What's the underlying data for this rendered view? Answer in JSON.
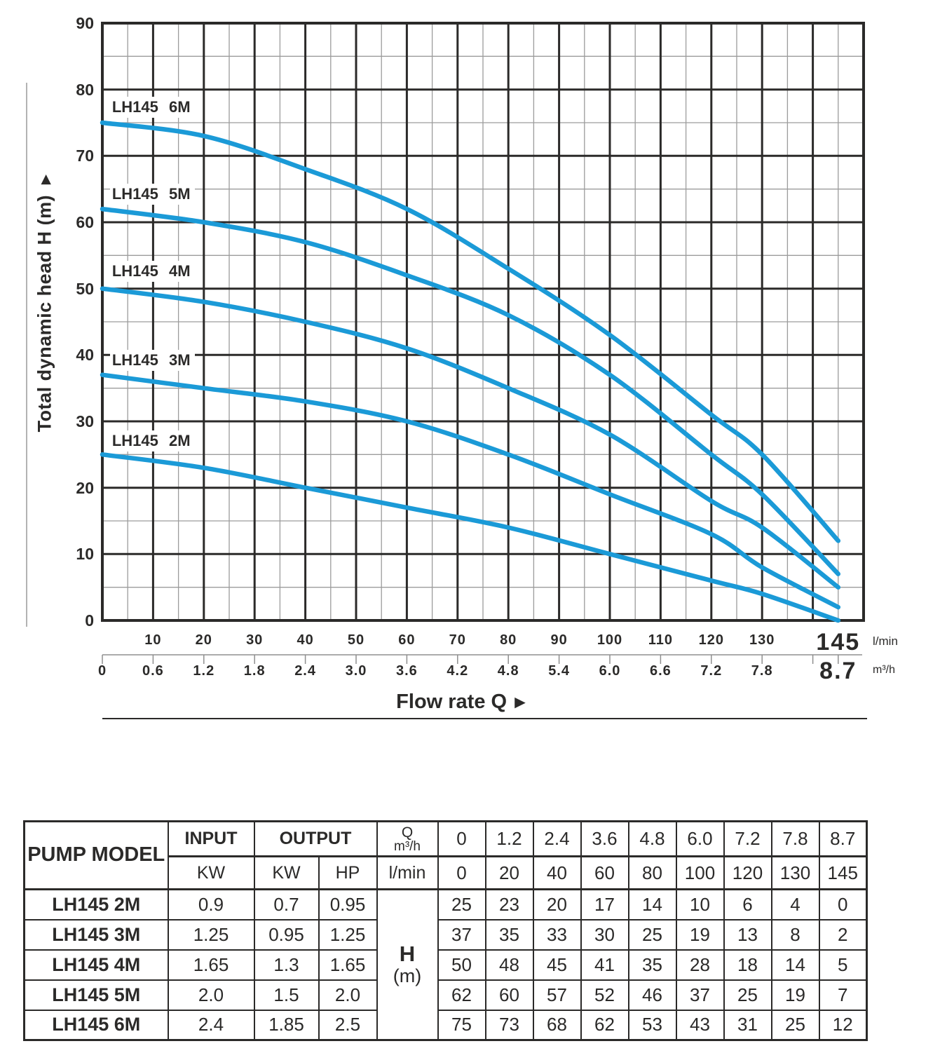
{
  "chart_data": {
    "type": "line",
    "title": "",
    "xlabel": "Flow rate Q",
    "ylabel": "Total dynamic head H (m)",
    "x_unit_primary": "l/min",
    "x_unit_secondary": "m³/h",
    "x_lmin": [
      0,
      20,
      40,
      60,
      80,
      100,
      120,
      130,
      145
    ],
    "x_m3h": [
      0,
      1.2,
      2.4,
      3.6,
      4.8,
      6.0,
      7.2,
      7.8,
      8.7
    ],
    "series": [
      {
        "name": "LH145 2M",
        "values": [
          25,
          23,
          20,
          17,
          14,
          10,
          6,
          4,
          0
        ],
        "label_pos": {
          "x": 1.5,
          "y": 27.0
        }
      },
      {
        "name": "LH145 3M",
        "values": [
          37,
          35,
          33,
          30,
          25,
          19,
          13,
          8,
          2
        ],
        "label_pos": {
          "x": 1.5,
          "y": 39.2
        }
      },
      {
        "name": "LH145 4M",
        "values": [
          50,
          48,
          45,
          41,
          35,
          28,
          18,
          14,
          5
        ],
        "label_pos": {
          "x": 1.5,
          "y": 52.6
        }
      },
      {
        "name": "LH145 5M",
        "values": [
          62,
          60,
          57,
          52,
          46,
          37,
          25,
          19,
          7
        ],
        "label_pos": {
          "x": 1.5,
          "y": 64.2
        }
      },
      {
        "name": "LH145 6M",
        "values": [
          75,
          73,
          68,
          62,
          53,
          43,
          31,
          25,
          12
        ],
        "label_pos": {
          "x": 1.5,
          "y": 77.3
        }
      }
    ],
    "ylim": [
      0,
      90
    ],
    "xlim_lmin": [
      0,
      150
    ],
    "y_ticks": [
      90,
      80,
      70,
      60,
      50,
      40,
      30,
      20,
      10,
      0
    ],
    "x_ticks_lmin": [
      10,
      20,
      30,
      40,
      50,
      60,
      70,
      80,
      90,
      100,
      110,
      120,
      130
    ],
    "x_ticks_m3h_labels": [
      "0",
      "0.6",
      "1.2",
      "1.8",
      "2.4",
      "3.0",
      "3.6",
      "4.2",
      "4.8",
      "5.4",
      "6.0",
      "6.6",
      "7.2",
      "7.8"
    ],
    "x_end": {
      "lmin": "145",
      "m3h": "8.7",
      "pos_lmin": 145
    },
    "ruler_ticks": [
      0,
      10,
      20,
      30,
      40,
      50,
      60,
      70,
      80,
      90,
      100,
      110,
      120,
      130,
      140,
      145
    ],
    "grid": {
      "major_step": 10,
      "minor_step": 5,
      "style": "major+minor"
    }
  },
  "colors": {
    "curve": "#1b9ad7",
    "grid_major": "#2b2a29",
    "grid_minor": "#9c9c9c",
    "ruler": "#8f8f8f",
    "text": "#2b2a29",
    "guide_line": "#b3b3b3"
  },
  "icons": {
    "axis_arrow": "►"
  },
  "table": {
    "col1_header": "PUMP MODEL",
    "input_header": "INPUT",
    "output_header": "OUTPUT",
    "q_label": "Q",
    "q_unit": "m³/h",
    "input_kw_header": "KW",
    "output_kw_header": "KW",
    "output_hp_header": "HP",
    "lmin_label": "l/min",
    "h_label": "H",
    "h_unit": "(m)",
    "q_m3h": [
      "0",
      "1.2",
      "2.4",
      "3.6",
      "4.8",
      "6.0",
      "7.2",
      "7.8",
      "8.7"
    ],
    "q_lmin": [
      "0",
      "20",
      "40",
      "60",
      "80",
      "100",
      "120",
      "130",
      "145"
    ],
    "rows": [
      {
        "model": "LH145 2M",
        "input_kw": "0.9",
        "output_kw": "0.7",
        "output_hp": "0.95",
        "head_m": [
          "25",
          "23",
          "20",
          "17",
          "14",
          "10",
          "6",
          "4",
          "0"
        ]
      },
      {
        "model": "LH145 3M",
        "input_kw": "1.25",
        "output_kw": "0.95",
        "output_hp": "1.25",
        "head_m": [
          "37",
          "35",
          "33",
          "30",
          "25",
          "19",
          "13",
          "8",
          "2"
        ]
      },
      {
        "model": "LH145 4M",
        "input_kw": "1.65",
        "output_kw": "1.3",
        "output_hp": "1.65",
        "head_m": [
          "50",
          "48",
          "45",
          "41",
          "35",
          "28",
          "18",
          "14",
          "5"
        ]
      },
      {
        "model": "LH145 5M",
        "input_kw": "2.0",
        "output_kw": "1.5",
        "output_hp": "2.0",
        "head_m": [
          "62",
          "60",
          "57",
          "52",
          "46",
          "37",
          "25",
          "19",
          "7"
        ]
      },
      {
        "model": "LH145 6M",
        "input_kw": "2.4",
        "output_kw": "1.85",
        "output_hp": "2.5",
        "head_m": [
          "75",
          "73",
          "68",
          "62",
          "53",
          "43",
          "31",
          "25",
          "12"
        ]
      }
    ]
  }
}
